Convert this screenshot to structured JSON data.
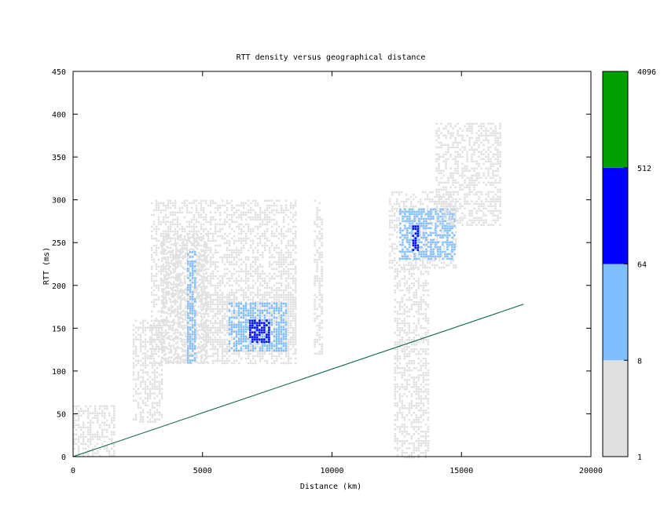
{
  "chart_data": {
    "type": "heatmap",
    "title": "RTT density versus geographical distance",
    "xlabel": "Distance (km)",
    "ylabel": "RTT (ms)",
    "xlim": [
      0,
      20000
    ],
    "ylim": [
      0,
      450
    ],
    "x_ticks": [
      "0",
      "5000",
      "10000",
      "15000",
      "20000"
    ],
    "y_ticks": [
      "0",
      "50",
      "100",
      "150",
      "200",
      "250",
      "300",
      "350",
      "400",
      "450"
    ],
    "colorbar": {
      "scale": "log",
      "ticks": [
        "1",
        "8",
        "64",
        "512",
        "4096"
      ],
      "bands": [
        {
          "from": 1,
          "to": 8,
          "color": "#e0e0e0"
        },
        {
          "from": 8,
          "to": 64,
          "color": "#80bfff"
        },
        {
          "from": 64,
          "to": 512,
          "color": "#0000ff"
        },
        {
          "from": 512,
          "to": 4096,
          "color": "#00a000"
        }
      ]
    },
    "reference_line": {
      "color": "#006040",
      "x": [
        0,
        17400
      ],
      "y": [
        0,
        178
      ]
    },
    "clusters": [
      {
        "x0": 3000,
        "x1": 8600,
        "y0": 110,
        "y1": 300,
        "level": 1
      },
      {
        "x0": 3400,
        "x1": 5200,
        "y0": 110,
        "y1": 260,
        "level": 1
      },
      {
        "x0": 4400,
        "x1": 4700,
        "y0": 110,
        "y1": 240,
        "level": 2
      },
      {
        "x0": 5000,
        "x1": 8600,
        "y0": 120,
        "y1": 190,
        "level": 1
      },
      {
        "x0": 6000,
        "x1": 8200,
        "y0": 125,
        "y1": 180,
        "level": 2
      },
      {
        "x0": 6800,
        "x1": 7600,
        "y0": 135,
        "y1": 160,
        "level": 3
      },
      {
        "x0": 12200,
        "x1": 14800,
        "y0": 220,
        "y1": 310,
        "level": 1
      },
      {
        "x0": 12600,
        "x1": 14700,
        "y0": 230,
        "y1": 290,
        "level": 2
      },
      {
        "x0": 13100,
        "x1": 13300,
        "y0": 240,
        "y1": 270,
        "level": 3
      },
      {
        "x0": 14000,
        "x1": 16500,
        "y0": 270,
        "y1": 390,
        "level": 1
      },
      {
        "x0": 0,
        "x1": 1600,
        "y0": 0,
        "y1": 60,
        "level": 1
      },
      {
        "x0": 2300,
        "x1": 3400,
        "y0": 40,
        "y1": 160,
        "level": 1
      },
      {
        "x0": 12400,
        "x1": 13700,
        "y0": 0,
        "y1": 220,
        "level": 1
      },
      {
        "x0": 9300,
        "x1": 9600,
        "y0": 120,
        "y1": 300,
        "level": 1
      }
    ]
  }
}
